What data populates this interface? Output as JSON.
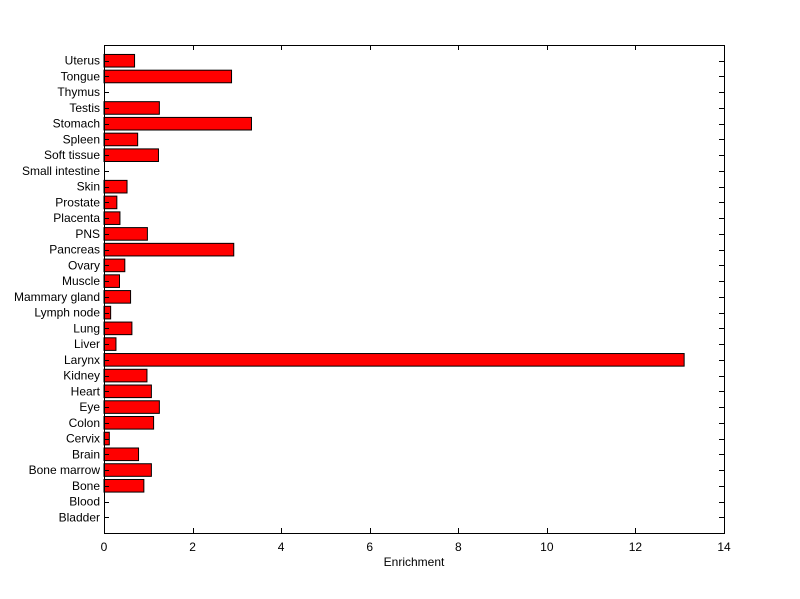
{
  "chart_data": {
    "type": "bar",
    "orientation": "horizontal",
    "title": "",
    "xlabel": "Enrichment",
    "ylabel": "",
    "xlim": [
      0,
      14
    ],
    "xticks": [
      0,
      2,
      4,
      6,
      8,
      10,
      12,
      14
    ],
    "grid": false,
    "legend": "none",
    "bar_color": "#ff0000",
    "bar_edge_color": "#000000",
    "categories": [
      "Bladder",
      "Blood",
      "Bone",
      "Bone marrow",
      "Brain",
      "Cervix",
      "Colon",
      "Eye",
      "Heart",
      "Kidney",
      "Larynx",
      "Liver",
      "Lung",
      "Lymph node",
      "Mammary gland",
      "Muscle",
      "Ovary",
      "Pancreas",
      "PNS",
      "Placenta",
      "Prostate",
      "Skin",
      "Small intestine",
      "Soft tissue",
      "Spleen",
      "Stomach",
      "Testis",
      "Thymus",
      "Tongue",
      "Uterus"
    ],
    "values": [
      0,
      0,
      0.9,
      1.07,
      0.78,
      0.12,
      1.12,
      1.25,
      1.07,
      0.97,
      13.1,
      0.27,
      0.63,
      0.15,
      0.6,
      0.35,
      0.47,
      2.93,
      0.98,
      0.36,
      0.29,
      0.52,
      0,
      1.23,
      0.76,
      3.33,
      1.25,
      0,
      2.88,
      0.69
    ]
  }
}
